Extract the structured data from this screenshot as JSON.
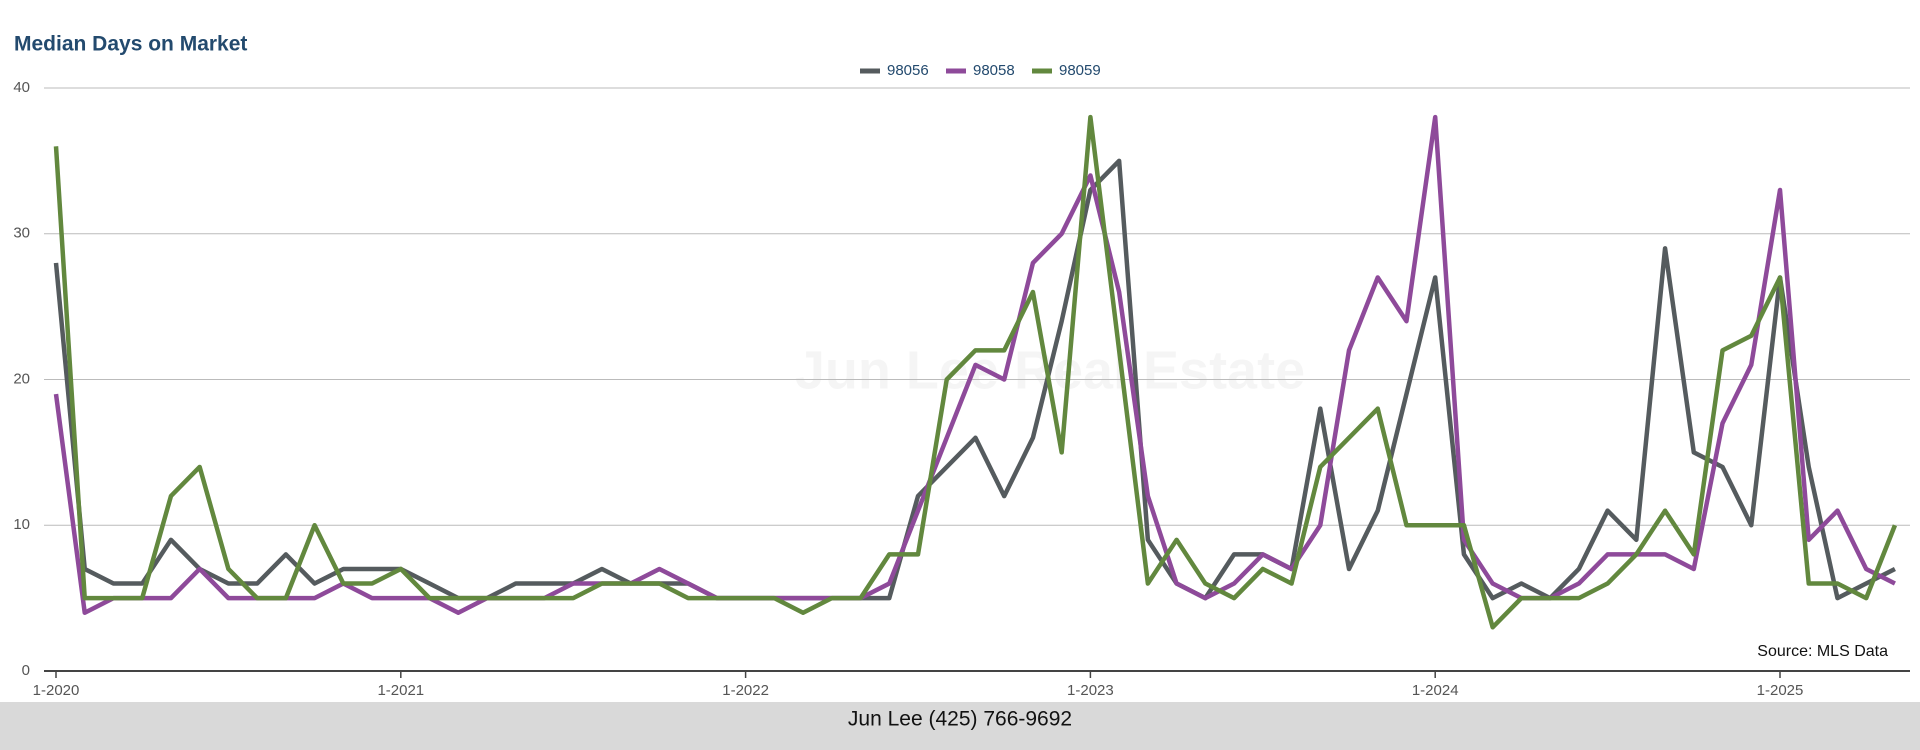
{
  "chart_data": {
    "type": "line",
    "title": "Median Days on Market",
    "watermark": "Jun Lee Real Estate",
    "source": "Source: MLS Data",
    "footer": "Jun Lee (425) 766-9692",
    "categories": [
      "1-2020",
      null,
      null,
      null,
      null,
      null,
      null,
      null,
      null,
      null,
      null,
      null,
      "1-2021",
      null,
      null,
      null,
      null,
      null,
      null,
      null,
      null,
      null,
      null,
      null,
      "1-2022",
      null,
      null,
      null,
      null,
      null,
      null,
      null,
      null,
      null,
      null,
      null,
      "1-2023",
      null,
      null,
      null,
      null,
      null,
      null,
      null,
      null,
      null,
      null,
      null,
      "1-2024",
      null,
      null,
      null,
      null,
      null,
      null,
      null,
      null,
      null,
      null,
      null,
      "1-2025",
      null,
      null,
      null,
      null
    ],
    "series": [
      {
        "name": "98056",
        "color": "#555b5e",
        "values": [
          28,
          7,
          6,
          6,
          9,
          7,
          6,
          6,
          8,
          6,
          7,
          7,
          7,
          6,
          5,
          5,
          6,
          6,
          6,
          7,
          6,
          6,
          6,
          5,
          5,
          5,
          5,
          5,
          5,
          5,
          12,
          14,
          16,
          12,
          16,
          24,
          33,
          35,
          9,
          6,
          5,
          8,
          8,
          7,
          18,
          7,
          11,
          19,
          27,
          8,
          5,
          6,
          5,
          7,
          11,
          9,
          29,
          15,
          14,
          10,
          27,
          14,
          5,
          6,
          7
        ]
      },
      {
        "name": "98058",
        "color": "#8e4a9a",
        "values": [
          19,
          4,
          5,
          5,
          5,
          7,
          5,
          5,
          5,
          5,
          6,
          5,
          5,
          5,
          4,
          5,
          5,
          5,
          6,
          6,
          6,
          7,
          6,
          5,
          5,
          5,
          5,
          5,
          5,
          6,
          11,
          16,
          21,
          20,
          28,
          30,
          34,
          26,
          12,
          6,
          5,
          6,
          8,
          7,
          10,
          22,
          27,
          24,
          38,
          9,
          6,
          5,
          5,
          6,
          8,
          8,
          8,
          7,
          17,
          21,
          33,
          9,
          11,
          7,
          6
        ]
      },
      {
        "name": "98059",
        "color": "#62883e",
        "values": [
          36,
          5,
          5,
          5,
          12,
          14,
          7,
          5,
          5,
          10,
          6,
          6,
          7,
          5,
          5,
          5,
          5,
          5,
          5,
          6,
          6,
          6,
          5,
          5,
          5,
          5,
          4,
          5,
          5,
          8,
          8,
          20,
          22,
          22,
          26,
          15,
          38,
          22,
          6,
          9,
          6,
          5,
          7,
          6,
          14,
          16,
          18,
          10,
          10,
          10,
          3,
          5,
          5,
          5,
          6,
          8,
          11,
          8,
          22,
          23,
          27,
          6,
          6,
          5,
          10
        ]
      }
    ],
    "ylim": [
      0,
      40
    ],
    "yticks": [
      0,
      10,
      20,
      30,
      40
    ],
    "grid": true,
    "legend": "top"
  }
}
